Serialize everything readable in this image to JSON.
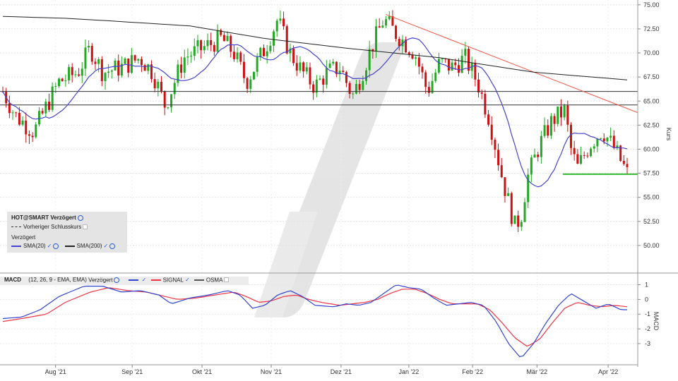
{
  "chart_data": {
    "type": "candlestick",
    "price_panel": {
      "ylabel": "Kurs",
      "ylim": [
        47.5,
        75.5
      ],
      "ticks": [
        "75.00",
        "72.50",
        "70.00",
        "67.50",
        "65.00",
        "62.50",
        "60.00",
        "57.50",
        "55.00",
        "52.50",
        "50.00"
      ],
      "tick_values": [
        75,
        72.5,
        70,
        67.5,
        65,
        62.5,
        60,
        57.5,
        55,
        52.5,
        50
      ],
      "horizontal_lines": [
        66.0,
        64.6
      ],
      "support_line": {
        "value": 57.4,
        "color": "#33bb33"
      },
      "trend_line": {
        "from": [
          0.543,
          74.0
        ],
        "to": [
          1.0,
          63.8
        ],
        "color": "#ee5544"
      },
      "sma20_color": "#4444cc",
      "sma200_color": "#222222",
      "anchors": [
        [
          0,
          66
        ],
        [
          0.02,
          63.5
        ],
        [
          0.05,
          61.8
        ],
        [
          0.07,
          64.5
        ],
        [
          0.09,
          67
        ],
        [
          0.12,
          68
        ],
        [
          0.14,
          70.5
        ],
        [
          0.16,
          68
        ],
        [
          0.19,
          68.5
        ],
        [
          0.22,
          69.5
        ],
        [
          0.24,
          68
        ],
        [
          0.26,
          64.5
        ],
        [
          0.29,
          69.5
        ],
        [
          0.32,
          70.5
        ],
        [
          0.35,
          71.5
        ],
        [
          0.37,
          70
        ],
        [
          0.39,
          67
        ],
        [
          0.42,
          70.5
        ],
        [
          0.44,
          73.5
        ],
        [
          0.46,
          70
        ],
        [
          0.48,
          68
        ],
        [
          0.5,
          66.5
        ],
        [
          0.52,
          68
        ],
        [
          0.54,
          68.5
        ],
        [
          0.56,
          65.5
        ],
        [
          0.57,
          67
        ],
        [
          0.59,
          70.5
        ],
        [
          0.61,
          73.5
        ],
        [
          0.63,
          72
        ],
        [
          0.66,
          70
        ],
        [
          0.68,
          66
        ],
        [
          0.7,
          69
        ],
        [
          0.72,
          68.5
        ],
        [
          0.74,
          69.5
        ],
        [
          0.76,
          67
        ],
        [
          0.78,
          63
        ],
        [
          0.8,
          57
        ],
        [
          0.82,
          52
        ],
        [
          0.83,
          53
        ],
        [
          0.84,
          57
        ],
        [
          0.86,
          60.5
        ],
        [
          0.88,
          63
        ],
        [
          0.9,
          64
        ],
        [
          0.91,
          60
        ],
        [
          0.92,
          58
        ],
        [
          0.94,
          60.5
        ],
        [
          0.96,
          62
        ],
        [
          0.98,
          60
        ],
        [
          1.0,
          57.5
        ]
      ]
    },
    "macd_panel": {
      "legend": {
        "title": "MACD",
        "params": "(12, 26, 9 - EMA, EMA)",
        "mode": "Verzögert",
        "items": [
          "SIGNAL",
          "OSMA"
        ]
      },
      "ylim": [
        -4.2,
        1.6
      ],
      "ticks": [
        "1",
        "0",
        "-1",
        "-2",
        "-3"
      ],
      "tick_values": [
        1,
        0,
        -1,
        -2,
        -3
      ],
      "ylabel": "MACD",
      "macd_color": "#3344cc",
      "signal_color": "#ee3344",
      "macd_anchors": [
        [
          0,
          -1.3
        ],
        [
          0.03,
          -1.2
        ],
        [
          0.06,
          -0.7
        ],
        [
          0.09,
          0.2
        ],
        [
          0.13,
          0.9
        ],
        [
          0.16,
          0.9
        ],
        [
          0.19,
          0.5
        ],
        [
          0.22,
          0.6
        ],
        [
          0.25,
          0.3
        ],
        [
          0.27,
          -0.3
        ],
        [
          0.3,
          0.1
        ],
        [
          0.33,
          0.3
        ],
        [
          0.36,
          0.6
        ],
        [
          0.38,
          0.3
        ],
        [
          0.4,
          -0.6
        ],
        [
          0.42,
          -0.4
        ],
        [
          0.44,
          0.3
        ],
        [
          0.46,
          0.6
        ],
        [
          0.48,
          0.2
        ],
        [
          0.5,
          -0.4
        ],
        [
          0.53,
          -0.5
        ],
        [
          0.55,
          -0.3
        ],
        [
          0.57,
          -0.4
        ],
        [
          0.59,
          -0.2
        ],
        [
          0.61,
          0.4
        ],
        [
          0.63,
          1.0
        ],
        [
          0.65,
          0.8
        ],
        [
          0.67,
          0.7
        ],
        [
          0.69,
          0.1
        ],
        [
          0.71,
          -0.4
        ],
        [
          0.73,
          -0.3
        ],
        [
          0.75,
          -0.2
        ],
        [
          0.77,
          -0.4
        ],
        [
          0.79,
          -1.5
        ],
        [
          0.81,
          -3.0
        ],
        [
          0.83,
          -4.0
        ],
        [
          0.85,
          -3.0
        ],
        [
          0.87,
          -1.6
        ],
        [
          0.89,
          -0.4
        ],
        [
          0.91,
          0.4
        ],
        [
          0.93,
          -0.1
        ],
        [
          0.95,
          -0.6
        ],
        [
          0.97,
          -0.3
        ],
        [
          0.99,
          -0.7
        ]
      ],
      "signal_anchors": [
        [
          0,
          -1.5
        ],
        [
          0.03,
          -1.3
        ],
        [
          0.07,
          -1.0
        ],
        [
          0.1,
          -0.2
        ],
        [
          0.14,
          0.5
        ],
        [
          0.17,
          0.8
        ],
        [
          0.2,
          0.6
        ],
        [
          0.23,
          0.5
        ],
        [
          0.26,
          0.2
        ],
        [
          0.28,
          0.0
        ],
        [
          0.31,
          0.1
        ],
        [
          0.34,
          0.3
        ],
        [
          0.37,
          0.5
        ],
        [
          0.39,
          0.2
        ],
        [
          0.41,
          -0.2
        ],
        [
          0.43,
          -0.1
        ],
        [
          0.45,
          0.2
        ],
        [
          0.47,
          0.3
        ],
        [
          0.49,
          0.0
        ],
        [
          0.51,
          -0.2
        ],
        [
          0.54,
          -0.4
        ],
        [
          0.56,
          -0.3
        ],
        [
          0.58,
          -0.2
        ],
        [
          0.6,
          0.0
        ],
        [
          0.62,
          0.4
        ],
        [
          0.64,
          0.7
        ],
        [
          0.66,
          0.7
        ],
        [
          0.68,
          0.4
        ],
        [
          0.7,
          0.0
        ],
        [
          0.72,
          -0.3
        ],
        [
          0.74,
          -0.3
        ],
        [
          0.76,
          -0.3
        ],
        [
          0.78,
          -0.7
        ],
        [
          0.8,
          -1.6
        ],
        [
          0.82,
          -2.6
        ],
        [
          0.84,
          -3.2
        ],
        [
          0.86,
          -2.7
        ],
        [
          0.88,
          -1.6
        ],
        [
          0.9,
          -0.6
        ],
        [
          0.92,
          -0.2
        ],
        [
          0.94,
          -0.4
        ],
        [
          0.96,
          -0.5
        ],
        [
          0.98,
          -0.4
        ],
        [
          1.0,
          -0.5
        ]
      ]
    },
    "x_axis": {
      "labels": [
        "Aug '21",
        "Sep '21",
        "Okt '21",
        "Nov '21",
        "Dez '21",
        "Jan '22",
        "Feb '22",
        "Mär '22",
        "Apr '22"
      ],
      "positions": [
        0.082,
        0.195,
        0.298,
        0.4,
        0.503,
        0.603,
        0.697,
        0.792,
        0.897
      ]
    }
  },
  "legend": {
    "title": "HOT@SMART Verzögert",
    "prev_close": "Vorheriger Schlusskurs",
    "section": "Verzögert",
    "sma20": "SMA(20)",
    "sma200": "SMA(200)"
  }
}
